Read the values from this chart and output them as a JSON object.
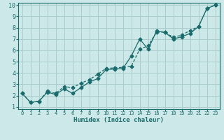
{
  "xlabel": "Humidex (Indice chaleur)",
  "ylabel": "",
  "bg_color": "#cce8e8",
  "grid_color": "#aacccc",
  "line_color": "#1a6b6b",
  "xlim": [
    -0.5,
    23.5
  ],
  "ylim": [
    0.8,
    10.2
  ],
  "xticks": [
    0,
    1,
    2,
    3,
    4,
    5,
    6,
    7,
    8,
    9,
    10,
    11,
    12,
    13,
    14,
    15,
    16,
    17,
    18,
    19,
    20,
    21,
    22,
    23
  ],
  "yticks": [
    1,
    2,
    3,
    4,
    5,
    6,
    7,
    8,
    9,
    10
  ],
  "line1_x": [
    0,
    1,
    2,
    3,
    4,
    5,
    6,
    7,
    8,
    9,
    10,
    11,
    12,
    13,
    14,
    15,
    16,
    17,
    18,
    19,
    20,
    21,
    22,
    23
  ],
  "line1_y": [
    2.2,
    1.4,
    1.5,
    2.3,
    2.1,
    2.6,
    2.2,
    2.7,
    3.2,
    3.5,
    4.3,
    4.35,
    4.4,
    5.5,
    7.0,
    6.1,
    7.7,
    7.6,
    7.0,
    7.2,
    7.5,
    8.1,
    9.7,
    10.0
  ],
  "line2_x": [
    0,
    1,
    2,
    3,
    4,
    5,
    6,
    7,
    8,
    9,
    10,
    11,
    12,
    13,
    14,
    15,
    16,
    17,
    18,
    19,
    20,
    21,
    22,
    23
  ],
  "line2_y": [
    2.2,
    1.4,
    1.5,
    2.4,
    2.2,
    2.8,
    2.7,
    3.1,
    3.4,
    3.9,
    4.4,
    4.45,
    4.5,
    4.6,
    6.1,
    6.4,
    7.6,
    7.6,
    7.15,
    7.35,
    7.75,
    8.1,
    9.7,
    10.0
  ]
}
